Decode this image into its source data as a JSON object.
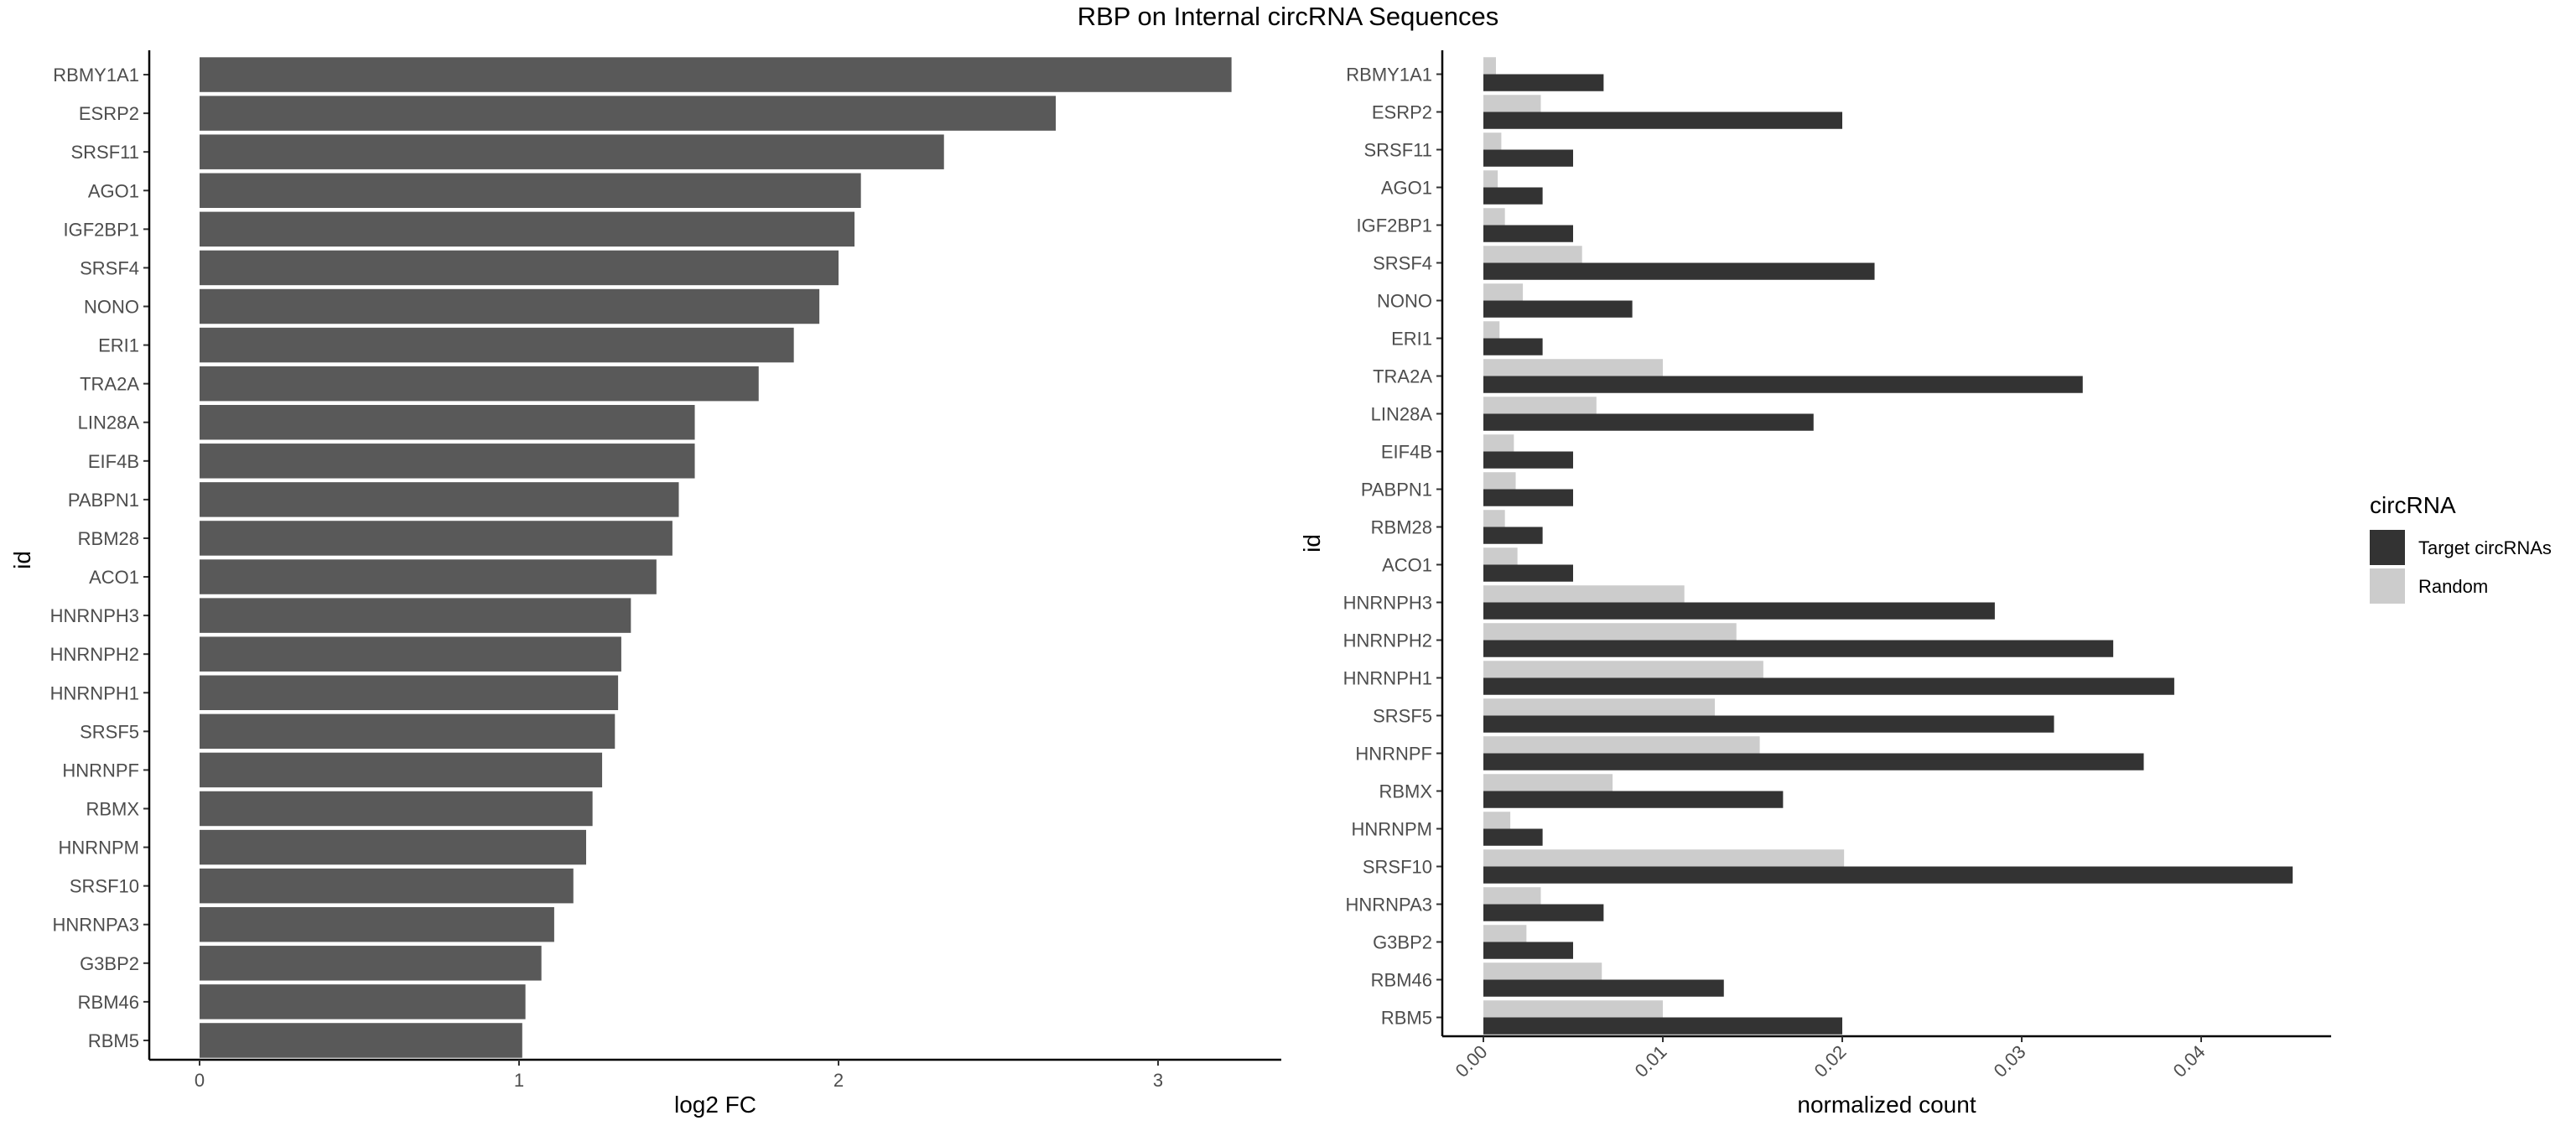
{
  "title": "RBP on Internal circRNA Sequences",
  "chart_data": [
    {
      "type": "bar",
      "orientation": "horizontal",
      "categories": [
        "RBMY1A1",
        "ESRP2",
        "SRSF11",
        "AGO1",
        "IGF2BP1",
        "SRSF4",
        "NONO",
        "ERI1",
        "TRA2A",
        "LIN28A",
        "EIF4B",
        "PABPN1",
        "RBM28",
        "ACO1",
        "HNRNPH3",
        "HNRNPH2",
        "HNRNPH1",
        "SRSF5",
        "HNRNPF",
        "RBMX",
        "HNRNPM",
        "SRSF10",
        "HNRNPA3",
        "G3BP2",
        "RBM46",
        "RBM5"
      ],
      "values": [
        3.23,
        2.68,
        2.33,
        2.07,
        2.05,
        2.0,
        1.94,
        1.86,
        1.75,
        1.55,
        1.55,
        1.5,
        1.48,
        1.43,
        1.35,
        1.32,
        1.31,
        1.3,
        1.26,
        1.23,
        1.21,
        1.17,
        1.11,
        1.07,
        1.02,
        1.01
      ],
      "xlabel": "log2 FC",
      "ylabel": "id",
      "xlim": [
        -0.16,
        3.4
      ],
      "xticks": [
        "0",
        "1",
        "2",
        "3"
      ],
      "bar_color": "#595959"
    },
    {
      "type": "bar",
      "orientation": "horizontal",
      "grouped": true,
      "categories": [
        "RBMY1A1",
        "ESRP2",
        "SRSF11",
        "AGO1",
        "IGF2BP1",
        "SRSF4",
        "NONO",
        "ERI1",
        "TRA2A",
        "LIN28A",
        "EIF4B",
        "PABPN1",
        "RBM28",
        "ACO1",
        "HNRNPH3",
        "HNRNPH2",
        "HNRNPH1",
        "SRSF5",
        "HNRNPF",
        "RBMX",
        "HNRNPM",
        "SRSF10",
        "HNRNPA3",
        "G3BP2",
        "RBM46",
        "RBM5"
      ],
      "series": [
        {
          "name": "Target circRNAs",
          "color": "#333333",
          "values": [
            0.0067,
            0.02,
            0.005,
            0.0033,
            0.005,
            0.0218,
            0.0083,
            0.0033,
            0.0334,
            0.0184,
            0.005,
            0.005,
            0.0033,
            0.005,
            0.0285,
            0.0351,
            0.0385,
            0.0318,
            0.0368,
            0.0167,
            0.0033,
            0.0451,
            0.0067,
            0.005,
            0.0134,
            0.02
          ]
        },
        {
          "name": "Random",
          "color": "#cccccc",
          "values": [
            0.0007,
            0.0032,
            0.001,
            0.0008,
            0.0012,
            0.0055,
            0.0022,
            0.0009,
            0.01,
            0.0063,
            0.0017,
            0.0018,
            0.0012,
            0.0019,
            0.0112,
            0.0141,
            0.0156,
            0.0129,
            0.0154,
            0.0072,
            0.0015,
            0.0201,
            0.0032,
            0.0024,
            0.0066,
            0.01
          ]
        }
      ],
      "xlabel": "normalized count",
      "ylabel": "id",
      "xlim": [
        -0.0023,
        0.0473
      ],
      "xticks": [
        "0.00",
        "0.01",
        "0.02",
        "0.03",
        "0.04"
      ],
      "xtick_rotation": -45,
      "legend": {
        "title": "circRNA",
        "position": "right",
        "entries": [
          "Target circRNAs",
          "Random"
        ]
      }
    }
  ]
}
